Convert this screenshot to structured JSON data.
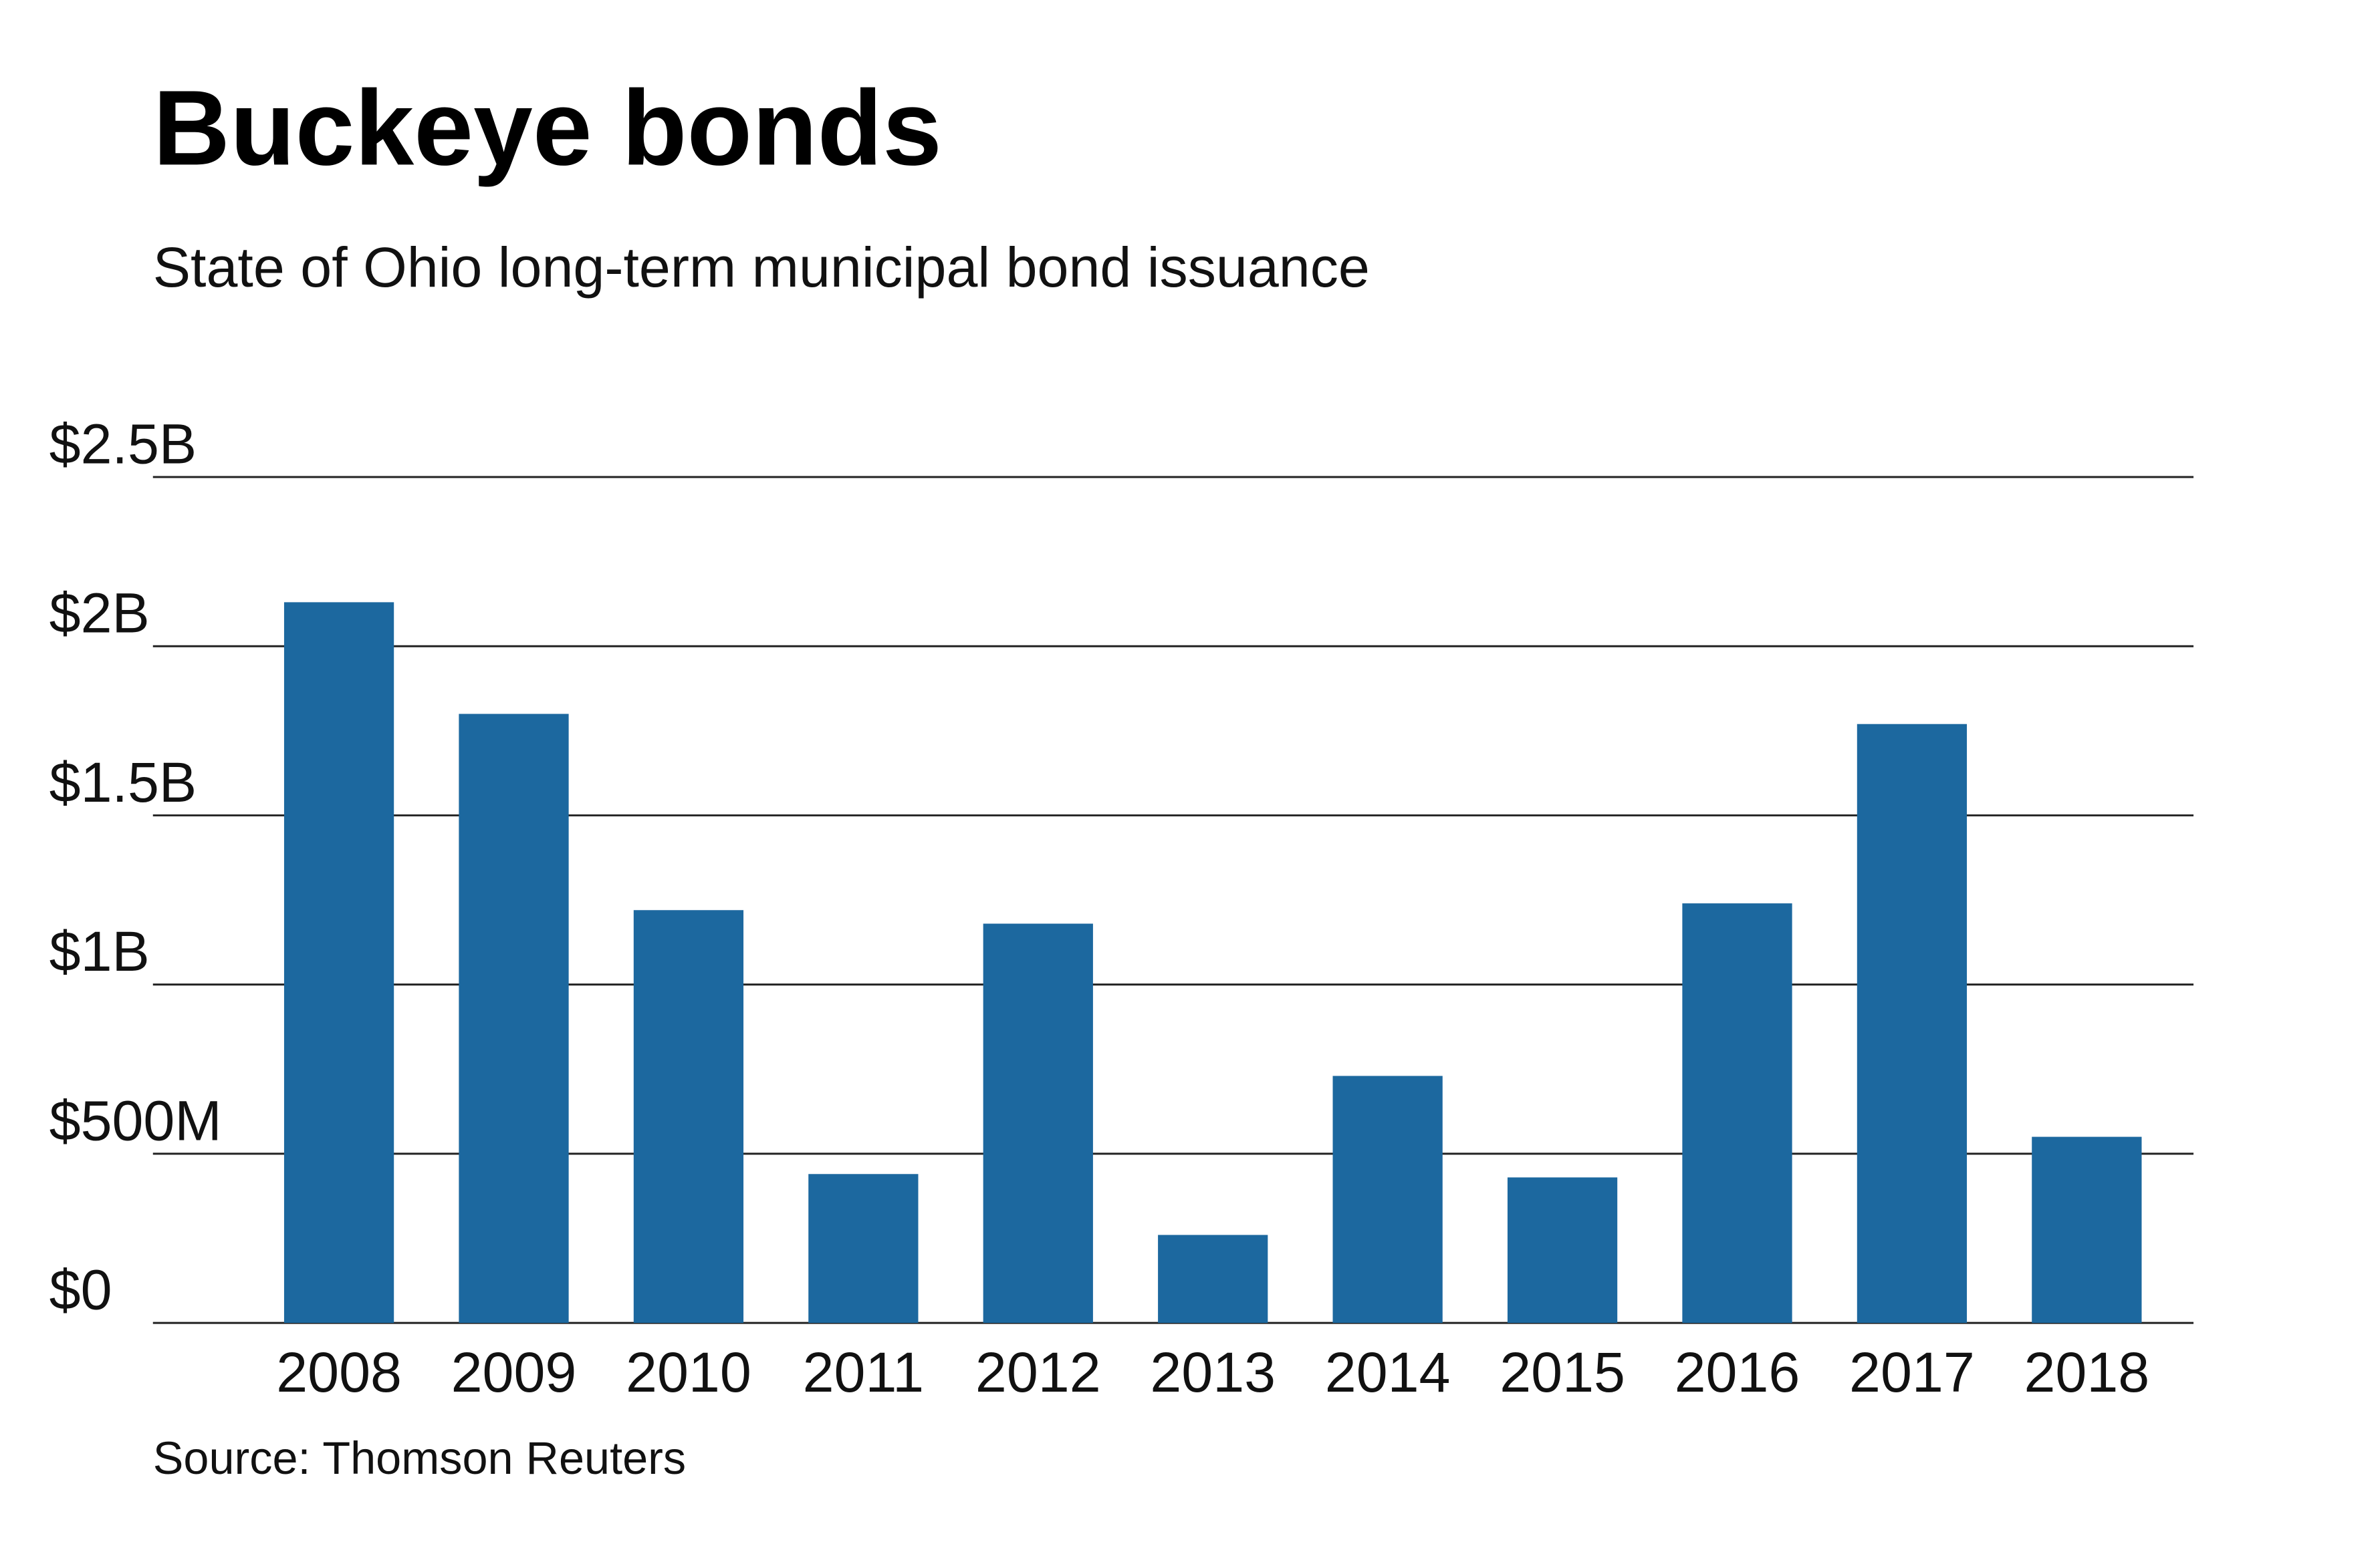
{
  "chart_data": {
    "type": "bar",
    "title": "Buckeye bonds",
    "subtitle": "State of Ohio long-term municipal bond issuance",
    "source": "Source: Thomson Reuters",
    "xlabel": "",
    "ylabel": "",
    "categories": [
      "2008",
      "2009",
      "2010",
      "2011",
      "2012",
      "2013",
      "2014",
      "2015",
      "2016",
      "2017",
      "2018"
    ],
    "values": [
      2.13,
      1.8,
      1.22,
      0.44,
      1.18,
      0.26,
      0.73,
      0.43,
      1.24,
      1.77,
      0.55
    ],
    "units": "billions of dollars",
    "ylim": [
      0,
      2.5
    ],
    "yticks": [
      0,
      0.5,
      1,
      1.5,
      2,
      2.5
    ],
    "ytick_labels": [
      "$0",
      "$500M",
      "$1B",
      "$1.5B",
      "$2B",
      "$2.5B"
    ],
    "grid": true,
    "bar_color": "#1c689f",
    "grid_color": "#222222"
  }
}
